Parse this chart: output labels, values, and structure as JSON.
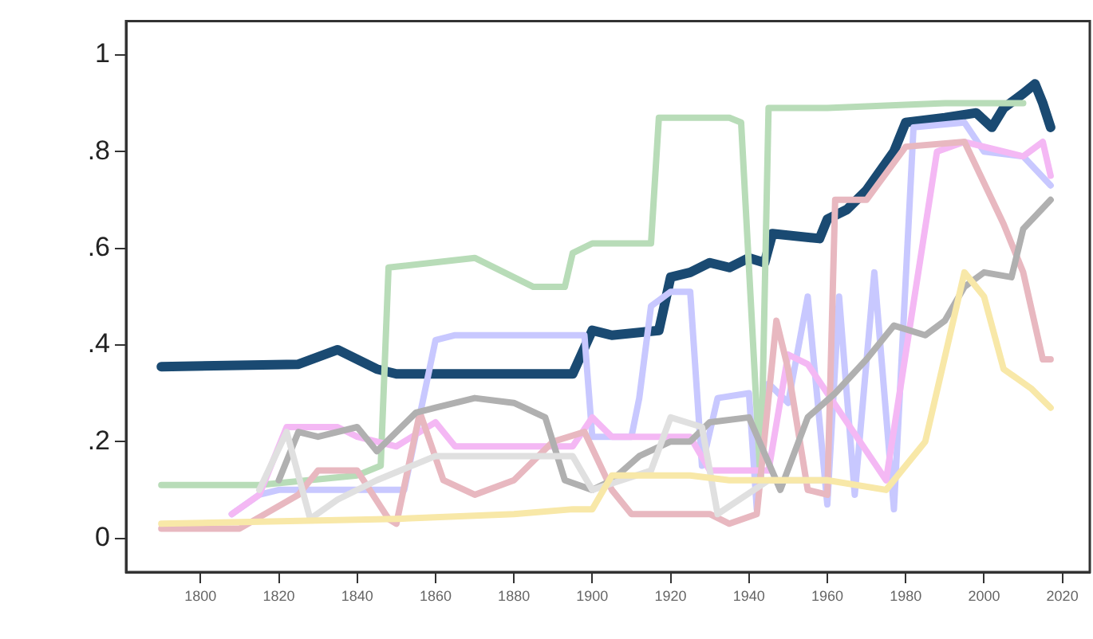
{
  "chart_data": {
    "type": "line",
    "xlim": [
      1781,
      2027
    ],
    "ylim": [
      -0.07,
      1.07
    ],
    "xticks": [
      1800,
      1820,
      1840,
      1860,
      1880,
      1900,
      1920,
      1940,
      1960,
      1980,
      2000,
      2020
    ],
    "yticks": [
      0,
      {
        "value": 0.2,
        "label": ".2"
      },
      {
        "value": 0.4,
        "label": ".4"
      },
      {
        "value": 0.6,
        "label": ".6"
      },
      {
        "value": 0.8,
        "label": ".8"
      },
      1
    ],
    "grid": false,
    "legend": false,
    "marker": "none",
    "line_style": "solid",
    "series": [
      {
        "color": "#f8e8a8",
        "x": [
          1790,
          1850,
          1880,
          1895,
          1900,
          1905,
          1925,
          1935,
          1960,
          1975,
          1985,
          1995,
          2000,
          2005,
          2012,
          2017
        ],
        "values": [
          0.03,
          0.04,
          0.05,
          0.06,
          0.06,
          0.13,
          0.13,
          0.12,
          0.12,
          0.1,
          0.2,
          0.55,
          0.5,
          0.35,
          0.31,
          0.27
        ]
      },
      {
        "color": "#e0e0e0",
        "x": [
          1815,
          1822,
          1828,
          1835,
          1845,
          1860,
          1895,
          1900,
          1915,
          1920,
          1928,
          1932,
          1945,
          1960
        ],
        "values": [
          0.1,
          0.22,
          0.04,
          0.08,
          0.12,
          0.17,
          0.17,
          0.1,
          0.14,
          0.25,
          0.23,
          0.05,
          0.12,
          0.12
        ]
      },
      {
        "color": "#b0b0b0",
        "x": [
          1820,
          1825,
          1830,
          1840,
          1845,
          1855,
          1860,
          1870,
          1880,
          1888,
          1893,
          1900,
          1905,
          1912,
          1920,
          1925,
          1930,
          1940,
          1948,
          1955,
          1962,
          1970,
          1977,
          1985,
          1990,
          1995,
          2000,
          2007,
          2010,
          2017
        ],
        "values": [
          0.12,
          0.22,
          0.21,
          0.23,
          0.18,
          0.26,
          0.27,
          0.29,
          0.28,
          0.25,
          0.12,
          0.1,
          0.12,
          0.17,
          0.2,
          0.2,
          0.24,
          0.25,
          0.1,
          0.25,
          0.3,
          0.37,
          0.44,
          0.42,
          0.45,
          0.52,
          0.55,
          0.54,
          0.64,
          0.7
        ]
      },
      {
        "color": "#e8b8c0",
        "x": [
          1790,
          1810,
          1825,
          1830,
          1840,
          1848,
          1850,
          1856,
          1862,
          1870,
          1880,
          1890,
          1898,
          1905,
          1910,
          1930,
          1935,
          1942,
          1947,
          1950,
          1955,
          1960,
          1962,
          1970,
          1980,
          1995,
          2005,
          2010,
          2015,
          2017
        ],
        "values": [
          0.02,
          0.02,
          0.09,
          0.14,
          0.14,
          0.04,
          0.03,
          0.26,
          0.12,
          0.09,
          0.12,
          0.2,
          0.22,
          0.1,
          0.05,
          0.05,
          0.03,
          0.05,
          0.45,
          0.35,
          0.1,
          0.09,
          0.7,
          0.7,
          0.81,
          0.82,
          0.65,
          0.55,
          0.37,
          0.37
        ]
      },
      {
        "color": "#f4b8f4",
        "x": [
          1808,
          1815,
          1822,
          1835,
          1840,
          1850,
          1860,
          1865,
          1895,
          1900,
          1905,
          1925,
          1930,
          1945,
          1950,
          1955,
          1975,
          1988,
          1995,
          2010,
          2015,
          2017
        ],
        "values": [
          0.05,
          0.09,
          0.23,
          0.23,
          0.21,
          0.19,
          0.24,
          0.19,
          0.19,
          0.25,
          0.21,
          0.21,
          0.14,
          0.14,
          0.38,
          0.36,
          0.12,
          0.8,
          0.82,
          0.79,
          0.82,
          0.75
        ]
      },
      {
        "color": "#b8dcb8",
        "x": [
          1790,
          1815,
          1840,
          1846,
          1848,
          1870,
          1885,
          1893,
          1895,
          1900,
          1915,
          1917,
          1935,
          1938,
          1943,
          1945,
          1960,
          1990,
          2010
        ],
        "values": [
          0.11,
          0.11,
          0.13,
          0.15,
          0.56,
          0.58,
          0.52,
          0.52,
          0.59,
          0.61,
          0.61,
          0.87,
          0.87,
          0.86,
          0.11,
          0.89,
          0.89,
          0.9,
          0.9
        ]
      },
      {
        "color": "#c8c8ff",
        "x": [
          1808,
          1815,
          1820,
          1852,
          1860,
          1865,
          1898,
          1900,
          1910,
          1912,
          1915,
          1920,
          1925,
          1928,
          1932,
          1940,
          1942,
          1945,
          1950,
          1955,
          1960,
          1963,
          1967,
          1972,
          1977,
          1982,
          1995,
          2000,
          2010,
          2017
        ],
        "values": [
          0.05,
          0.09,
          0.1,
          0.1,
          0.41,
          0.42,
          0.42,
          0.21,
          0.21,
          0.29,
          0.48,
          0.51,
          0.51,
          0.15,
          0.29,
          0.3,
          0.06,
          0.32,
          0.28,
          0.5,
          0.07,
          0.5,
          0.09,
          0.55,
          0.06,
          0.85,
          0.86,
          0.8,
          0.79,
          0.73
        ]
      },
      {
        "color": "#1a4a72",
        "x": [
          1790,
          1825,
          1835,
          1845,
          1850,
          1895,
          1900,
          1905,
          1917,
          1920,
          1925,
          1930,
          1935,
          1940,
          1944,
          1946,
          1958,
          1960,
          1965,
          1970,
          1977,
          1980,
          1990,
          1998,
          2002,
          2005,
          2010,
          2013,
          2015,
          2017
        ],
        "values": [
          0.355,
          0.36,
          0.39,
          0.35,
          0.34,
          0.34,
          0.43,
          0.42,
          0.43,
          0.54,
          0.55,
          0.57,
          0.56,
          0.58,
          0.57,
          0.63,
          0.62,
          0.66,
          0.68,
          0.72,
          0.8,
          0.86,
          0.87,
          0.88,
          0.85,
          0.89,
          0.92,
          0.94,
          0.9,
          0.85
        ]
      }
    ]
  }
}
